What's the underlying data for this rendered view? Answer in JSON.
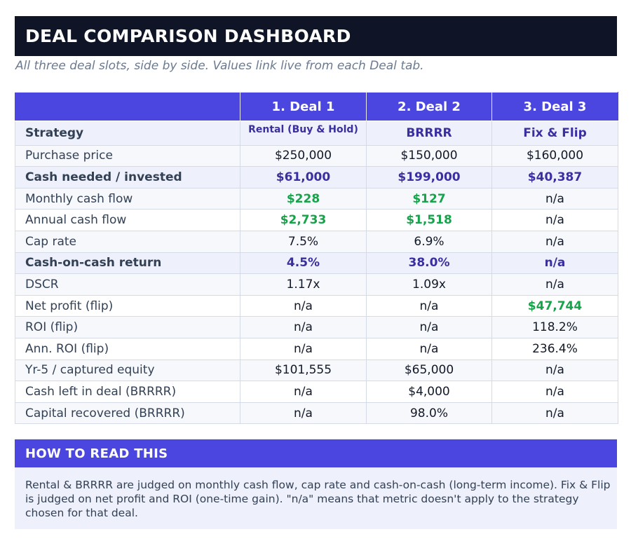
{
  "header": {
    "title": "DEAL COMPARISON DASHBOARD",
    "subtitle": "All three deal slots, side by side. Values link live from each Deal tab."
  },
  "table": {
    "columns": [
      "",
      "1. Deal 1",
      "2. Deal 2",
      "3. Deal 3"
    ],
    "rows": [
      {
        "label": "Strategy",
        "values": [
          "Rental (Buy & Hold)",
          "BRRRR",
          "Fix & Flip"
        ]
      },
      {
        "label": "Purchase price",
        "values": [
          "$250,000",
          "$150,000",
          "$160,000"
        ]
      },
      {
        "label": "Cash needed / invested",
        "values": [
          "$61,000",
          "$199,000",
          "$40,387"
        ]
      },
      {
        "label": "Monthly cash flow",
        "values": [
          "$228",
          "$127",
          "n/a"
        ]
      },
      {
        "label": "Annual cash flow",
        "values": [
          "$2,733",
          "$1,518",
          "n/a"
        ]
      },
      {
        "label": "Cap rate",
        "values": [
          "7.5%",
          "6.9%",
          "n/a"
        ]
      },
      {
        "label": "Cash-on-cash return",
        "values": [
          "4.5%",
          "38.0%",
          "n/a"
        ]
      },
      {
        "label": "DSCR",
        "values": [
          "1.17x",
          "1.09x",
          "n/a"
        ]
      },
      {
        "label": "Net profit (flip)",
        "values": [
          "n/a",
          "n/a",
          "$47,744"
        ]
      },
      {
        "label": "ROI (flip)",
        "values": [
          "n/a",
          "n/a",
          "118.2%"
        ]
      },
      {
        "label": "Ann. ROI (flip)",
        "values": [
          "n/a",
          "n/a",
          "236.4%"
        ]
      },
      {
        "label": "Yr-5 / captured equity",
        "values": [
          "$101,555",
          "$65,000",
          "n/a"
        ]
      },
      {
        "label": "Cash left in deal (BRRRR)",
        "values": [
          "n/a",
          "$4,000",
          "n/a"
        ]
      },
      {
        "label": "Capital recovered (BRRRR)",
        "values": [
          "n/a",
          "98.0%",
          "n/a"
        ]
      }
    ]
  },
  "how_to": {
    "title": "HOW TO READ THIS",
    "body": "Rental & BRRRR are judged on monthly cash flow, cap rate and cash-on-cash (long-term income). Fix & Flip is judged on net profit and ROI (one-time gain). \"n/a\" means that metric doesn't apply to the strategy chosen for that deal."
  },
  "colors": {
    "title_bar": "#0f1526",
    "accent": "#4b46e0",
    "highlight_text": "#3a2f9e",
    "positive": "#16a34a",
    "highlight_row": "#eef0fc"
  }
}
